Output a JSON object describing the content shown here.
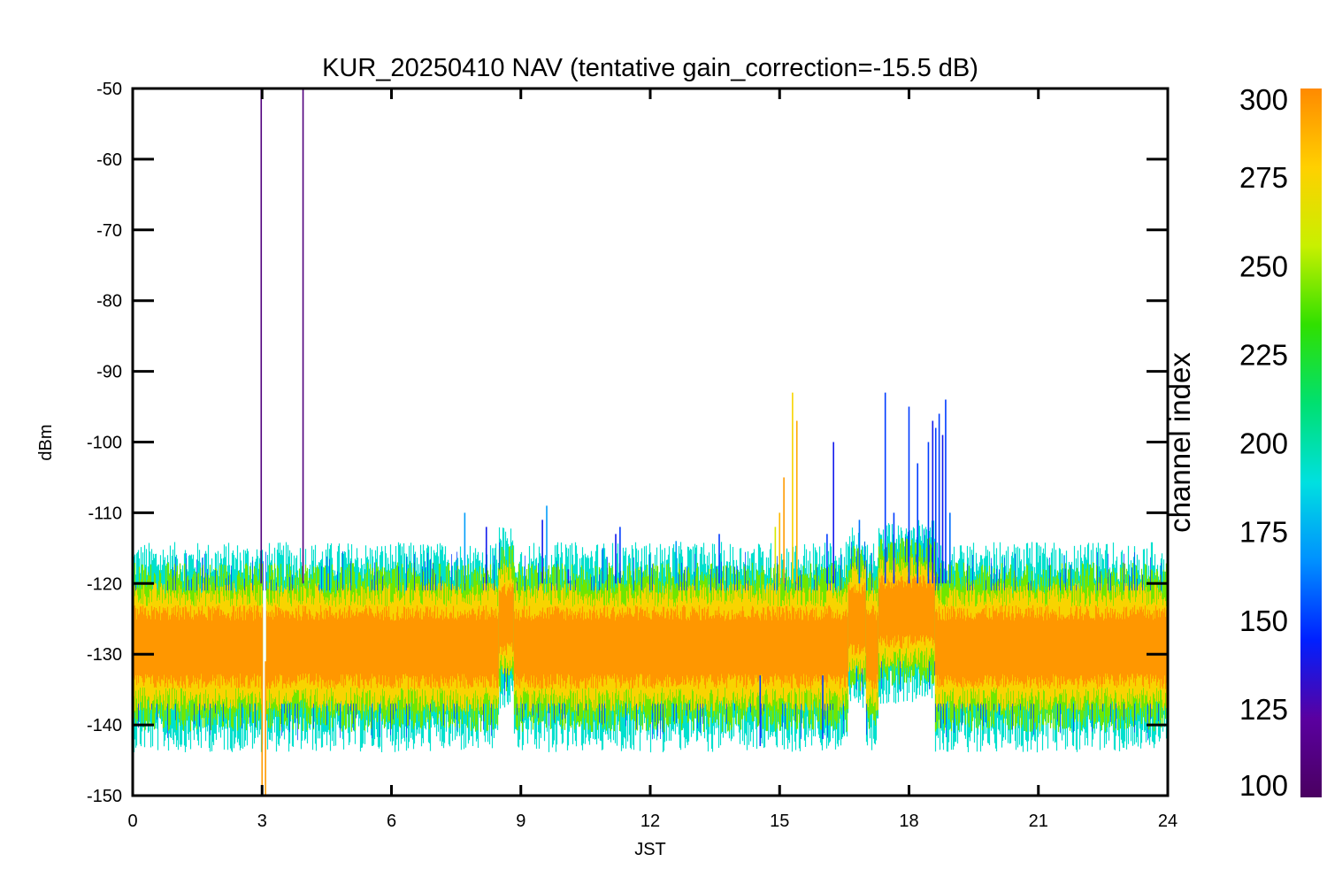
{
  "chart_data": {
    "type": "line",
    "title": "KUR_20250410 NAV (tentative gain_correction=-15.5 dB)",
    "xlabel": "JST",
    "ylabel": "dBm",
    "xlim": [
      0,
      24
    ],
    "ylim": [
      -150,
      -50
    ],
    "x_ticks": [
      0,
      3,
      6,
      9,
      12,
      15,
      18,
      21,
      24
    ],
    "y_ticks": [
      -50,
      -60,
      -70,
      -80,
      -90,
      -100,
      -110,
      -120,
      -130,
      -140,
      -150
    ],
    "x_tick_labels": [
      "0",
      "3",
      "6",
      "9",
      "12",
      "15",
      "18",
      "21",
      "24"
    ],
    "y_tick_labels": [
      "-50",
      "-60",
      "-70",
      "-80",
      "-90",
      "-100",
      "-110",
      "-120",
      "-130",
      "-140",
      "-150"
    ],
    "grid": false,
    "noise_floor": [
      {
        "start": 0.0,
        "end": 8.5,
        "center": -129,
        "spread": 8
      },
      {
        "start": 8.5,
        "end": 8.85,
        "center": -125,
        "spread": 7
      },
      {
        "start": 8.85,
        "end": 16.6,
        "center": -129,
        "spread": 8
      },
      {
        "start": 16.6,
        "end": 17.0,
        "center": -125,
        "spread": 7
      },
      {
        "start": 17.0,
        "end": 17.3,
        "center": -129,
        "spread": 8
      },
      {
        "start": 17.3,
        "end": 18.6,
        "center": -124,
        "spread": 7
      },
      {
        "start": 18.6,
        "end": 24.0,
        "center": -129,
        "spread": 8
      }
    ],
    "data_gap": {
      "start": 3.0,
      "end": 3.08
    },
    "spikes": [
      {
        "x": 2.98,
        "y": -50,
        "base": -120,
        "channel": 110
      },
      {
        "x": 3.95,
        "y": -50,
        "base": -120,
        "channel": 110
      },
      {
        "x": 3.0,
        "y": -150,
        "base": -131,
        "channel": 295
      },
      {
        "x": 3.08,
        "y": -150,
        "base": -131,
        "channel": 295
      },
      {
        "x": 7.7,
        "y": -110,
        "base": -120,
        "channel": 170
      },
      {
        "x": 8.2,
        "y": -112,
        "base": -120,
        "channel": 140
      },
      {
        "x": 8.35,
        "y": -115,
        "base": -120,
        "channel": 190
      },
      {
        "x": 9.5,
        "y": -111,
        "base": -120,
        "channel": 140
      },
      {
        "x": 9.6,
        "y": -109,
        "base": -120,
        "channel": 170
      },
      {
        "x": 10.1,
        "y": -118,
        "base": -120,
        "channel": 140
      },
      {
        "x": 10.9,
        "y": -115,
        "base": -120,
        "channel": 160
      },
      {
        "x": 11.2,
        "y": -113,
        "base": -120,
        "channel": 140
      },
      {
        "x": 11.3,
        "y": -112,
        "base": -120,
        "channel": 150
      },
      {
        "x": 12.6,
        "y": -114,
        "base": -120,
        "channel": 170
      },
      {
        "x": 13.6,
        "y": -113,
        "base": -120,
        "channel": 150
      },
      {
        "x": 14.9,
        "y": -112,
        "base": -120,
        "channel": 260
      },
      {
        "x": 15.0,
        "y": -110,
        "base": -120,
        "channel": 285
      },
      {
        "x": 15.3,
        "y": -93,
        "base": -120,
        "channel": 275
      },
      {
        "x": 15.4,
        "y": -97,
        "base": -120,
        "channel": 290
      },
      {
        "x": 15.1,
        "y": -105,
        "base": -120,
        "channel": 295
      },
      {
        "x": 16.25,
        "y": -100,
        "base": -120,
        "channel": 140
      },
      {
        "x": 16.1,
        "y": -113,
        "base": -120,
        "channel": 150
      },
      {
        "x": 16.85,
        "y": -111,
        "base": -120,
        "channel": 160
      },
      {
        "x": 17.45,
        "y": -93,
        "base": -120,
        "channel": 150
      },
      {
        "x": 17.65,
        "y": -110,
        "base": -120,
        "channel": 150
      },
      {
        "x": 18.0,
        "y": -95,
        "base": -120,
        "channel": 150
      },
      {
        "x": 18.2,
        "y": -103,
        "base": -120,
        "channel": 150
      },
      {
        "x": 18.45,
        "y": -100,
        "base": -120,
        "channel": 150
      },
      {
        "x": 18.55,
        "y": -97,
        "base": -120,
        "channel": 140
      },
      {
        "x": 18.62,
        "y": -98,
        "base": -120,
        "channel": 150
      },
      {
        "x": 18.7,
        "y": -96,
        "base": -120,
        "channel": 150
      },
      {
        "x": 18.78,
        "y": -99,
        "base": -120,
        "channel": 140
      },
      {
        "x": 18.85,
        "y": -94,
        "base": -120,
        "channel": 150
      },
      {
        "x": 18.95,
        "y": -110,
        "base": -120,
        "channel": 160
      },
      {
        "x": 20.8,
        "y": -115,
        "base": -120,
        "channel": 190
      },
      {
        "x": 21.6,
        "y": -116,
        "base": -120,
        "channel": 170
      },
      {
        "x": 14.55,
        "y": -143,
        "base": -133,
        "channel": 150
      },
      {
        "x": 16.0,
        "y": -142,
        "base": -133,
        "channel": 150
      }
    ]
  },
  "colorbar": {
    "label": "channel index",
    "ticks": [
      100,
      125,
      150,
      175,
      200,
      225,
      250,
      275,
      300
    ],
    "tick_labels": [
      "100",
      "125",
      "150",
      "175",
      "200",
      "225",
      "250",
      "275",
      "300"
    ],
    "range": [
      100,
      300
    ],
    "colormap": "rainbow",
    "colors": [
      "#4a0060",
      "#5a00a0",
      "#0020ff",
      "#0090ff",
      "#00e0e0",
      "#00e070",
      "#30e000",
      "#c8f000",
      "#ffd000",
      "#ff8a00"
    ]
  }
}
